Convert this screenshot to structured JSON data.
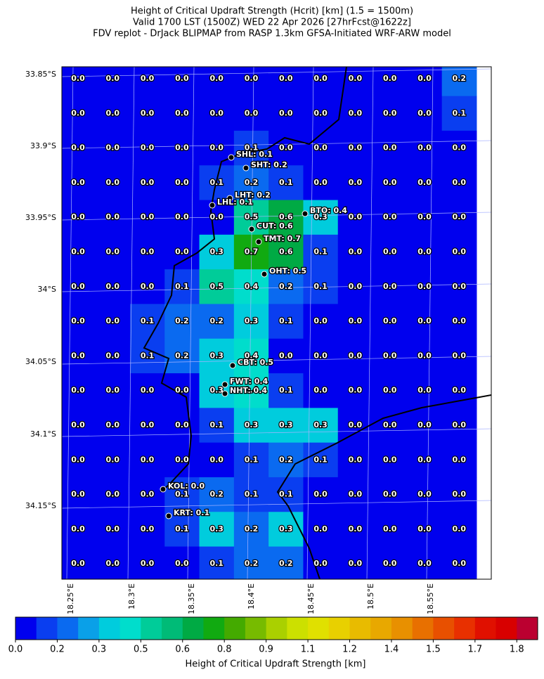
{
  "title": [
    "Height of Critical Updraft Strength (Hcrit) [km] (1.5 = 1500m)",
    "Valid 1700 LST (1500Z) WED 22 Apr 2026 [27hrFcst@1622z]",
    "FDV replot - DrJack BLIPMAP from RASP 1.3km GFSA-Initiated WRF-ARW model"
  ],
  "map": {
    "grid": [
      [
        "0.0",
        "0.0",
        "0.0",
        "0.0",
        "0.0",
        "0.0",
        "0.0",
        "0.0",
        "0.0",
        "0.0",
        "0.0",
        "0.2"
      ],
      [
        "0.0",
        "0.0",
        "0.0",
        "0.0",
        "0.0",
        "0.0",
        "0.0",
        "0.0",
        "0.0",
        "0.0",
        "0.0",
        "0.1"
      ],
      [
        "0.0",
        "0.0",
        "0.0",
        "0.0",
        "0.0",
        "0.1",
        "0.0",
        "0.0",
        "0.0",
        "0.0",
        "0.0",
        "0.0"
      ],
      [
        "0.0",
        "0.0",
        "0.0",
        "0.0",
        "0.1",
        "0.2",
        "0.1",
        "0.0",
        "0.0",
        "0.0",
        "0.0",
        "0.0"
      ],
      [
        "0.0",
        "0.0",
        "0.0",
        "0.0",
        "0.0",
        "0.5",
        "0.6",
        "0.3",
        "0.0",
        "0.0",
        "0.0",
        "0.0"
      ],
      [
        "0.0",
        "0.0",
        "0.0",
        "0.0",
        "0.3",
        "0.7",
        "0.6",
        "0.1",
        "0.0",
        "0.0",
        "0.0",
        "0.0"
      ],
      [
        "0.0",
        "0.0",
        "0.0",
        "0.1",
        "0.5",
        "0.4",
        "0.2",
        "0.1",
        "0.0",
        "0.0",
        "0.0",
        "0.0"
      ],
      [
        "0.0",
        "0.0",
        "0.1",
        "0.2",
        "0.2",
        "0.3",
        "0.1",
        "0.0",
        "0.0",
        "0.0",
        "0.0",
        "0.0"
      ],
      [
        "0.0",
        "0.0",
        "0.1",
        "0.2",
        "0.3",
        "0.4",
        "0.0",
        "0.0",
        "0.0",
        "0.0",
        "0.0",
        "0.0"
      ],
      [
        "0.0",
        "0.0",
        "0.0",
        "0.0",
        "0.3",
        "0.4",
        "0.1",
        "0.0",
        "0.0",
        "0.0",
        "0.0",
        "0.0"
      ],
      [
        "0.0",
        "0.0",
        "0.0",
        "0.0",
        "0.1",
        "0.3",
        "0.3",
        "0.3",
        "0.0",
        "0.0",
        "0.0",
        "0.0"
      ],
      [
        "0.0",
        "0.0",
        "0.0",
        "0.0",
        "0.0",
        "0.1",
        "0.2",
        "0.1",
        "0.0",
        "0.0",
        "0.0",
        "0.0"
      ],
      [
        "0.0",
        "0.0",
        "0.0",
        "0.1",
        "0.2",
        "0.1",
        "0.1",
        "0.0",
        "0.0",
        "0.0",
        "0.0",
        "0.0"
      ],
      [
        "0.0",
        "0.0",
        "0.0",
        "0.1",
        "0.3",
        "0.2",
        "0.3",
        "0.0",
        "0.0",
        "0.0",
        "0.0",
        "0.0"
      ],
      [
        "0.0",
        "0.0",
        "0.0",
        "0.0",
        "0.1",
        "0.2",
        "0.2",
        "0.0",
        "0.0",
        "0.0",
        "0.0",
        "0.0"
      ]
    ],
    "sites": [
      "SHL: 0.1",
      "SHT: 0.2",
      "LHT: 0.2",
      "LHL: 0.1",
      "BTO: 0.4",
      "CUT: 0.6",
      "TMT: 0.7",
      "OHT: 0.5",
      "CBT: 0.5",
      "FWT: 0.4",
      "NHT: 0.4",
      "KOL: 0.0",
      "KRT: 0.1"
    ],
    "lat_labels": [
      "33.85°S",
      "33.9°S",
      "33.95°S",
      "34°S",
      "34.05°S",
      "34.1°S",
      "34.15°S"
    ],
    "lon_labels": [
      "18.25°E",
      "18.3°E",
      "18.35°E",
      "18.4°E",
      "18.45°E",
      "18.5°E",
      "18.55°E"
    ]
  },
  "colorbar": {
    "colors": [
      "#0000ee",
      "#0a3ef0",
      "#0a6af0",
      "#0aa0e8",
      "#00ccdd",
      "#00ddcc",
      "#00cc99",
      "#00bb77",
      "#00aa44",
      "#11aa11",
      "#44aa00",
      "#77bb00",
      "#aad000",
      "#cce000",
      "#e0e000",
      "#e8d000",
      "#e8bb00",
      "#e8a800",
      "#e89000",
      "#e87000",
      "#e85000",
      "#e83000",
      "#e01000",
      "#d80000",
      "#bb0030"
    ],
    "lim": [
      0,
      1.875
    ],
    "ticks": [
      {
        "value": 0,
        "label": "0.0"
      },
      {
        "value": 0.15,
        "label": "0.2"
      },
      0.3,
      {
        "value": 0.45,
        "label": "0.5"
      },
      0.6,
      {
        "value": 0.75,
        "label": "0.8"
      },
      0.9,
      {
        "value": 1.05,
        "label": "1.1"
      },
      1.2,
      {
        "value": 1.35,
        "label": "1.4"
      },
      1.5,
      {
        "value": 1.65,
        "label": "1.7"
      },
      1.8
    ],
    "label": "Height of Critical Updraft Strength [km]"
  }
}
